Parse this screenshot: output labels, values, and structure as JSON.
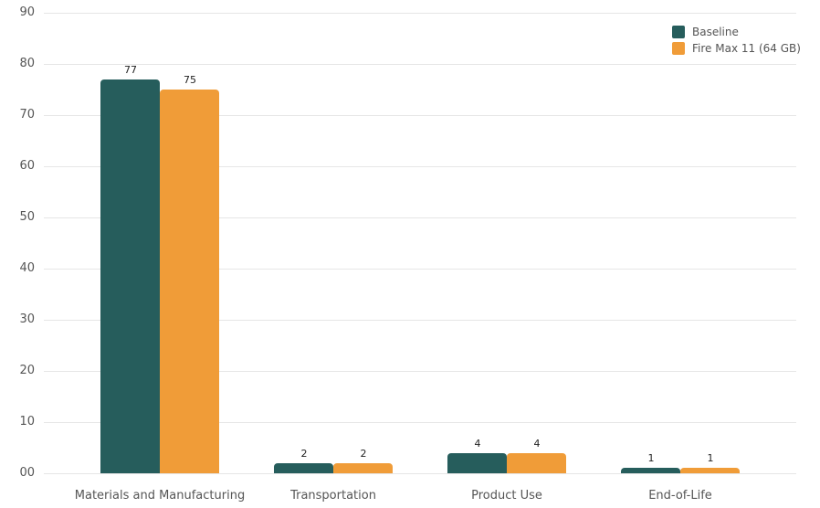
{
  "chart_data": {
    "type": "bar",
    "title": "",
    "xlabel": "",
    "ylabel": "",
    "ylim": [
      0,
      90
    ],
    "yticks": [
      0,
      10,
      20,
      30,
      40,
      50,
      60,
      70,
      80,
      90
    ],
    "ytick_labels": [
      "00",
      "10",
      "20",
      "30",
      "40",
      "50",
      "60",
      "70",
      "80",
      "90"
    ],
    "grid": true,
    "legend_position": "top-right",
    "categories": [
      "Materials and Manufacturing",
      "Transportation",
      "Product Use",
      "End-of-Life"
    ],
    "series": [
      {
        "name": "Baseline",
        "color": "#265d5c",
        "values": [
          77,
          2,
          4,
          1
        ]
      },
      {
        "name": "Fire Max 11 (64 GB)",
        "color": "#f09c38",
        "values": [
          75,
          2,
          4,
          1
        ]
      }
    ]
  }
}
